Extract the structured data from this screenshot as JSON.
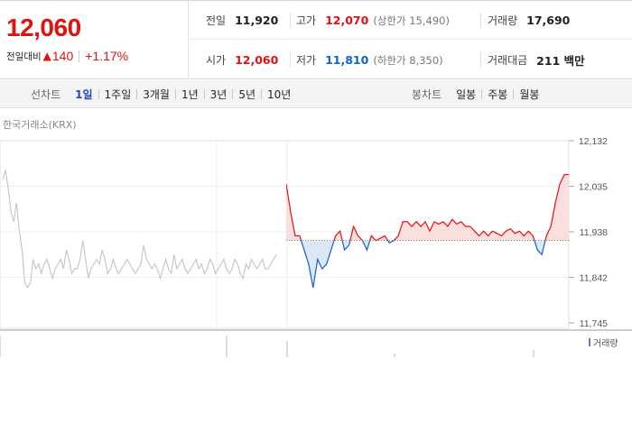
{
  "summary": {
    "price": "12,060",
    "change_label": "전일대비",
    "change_icon": "up-triangle-icon",
    "change_value": "140",
    "change_rate": "+1.17%",
    "prev_close_label": "전일",
    "prev_close": "11,920",
    "high_label": "고가",
    "high": "12,070",
    "upper_limit": "(상한가 15,490)",
    "volume_label": "거래량",
    "volume": "17,690",
    "open_label": "시가",
    "open": "12,060",
    "low_label": "저가",
    "low": "11,810",
    "lower_limit": "(하한가 8,350)",
    "amount_label": "거래대금",
    "amount": "211 백만"
  },
  "tabs": {
    "line_title": "선차트",
    "line": [
      "1일",
      "1주일",
      "3개월",
      "1년",
      "3년",
      "5년",
      "10년"
    ],
    "candle_title": "봉차트",
    "candle": [
      "일봉",
      "주봉",
      "월봉"
    ]
  },
  "exchange": "한국거래소(KRX)",
  "volume_legend": "거래량",
  "colors": {
    "up": "#e1120f",
    "down": "#1360c9",
    "up_fill": "#fbdede",
    "down_fill": "#dce8f6",
    "prev_line": "#c8c8c8"
  },
  "chart_data": {
    "type": "line",
    "ylim": [
      11745,
      12132
    ],
    "y_ticks": [
      "12,132",
      "12,035",
      "11,938",
      "11,842",
      "11,745"
    ],
    "base": 11920,
    "series": [
      {
        "values": [
          12050,
          12070,
          12030,
          11980,
          11960,
          12000,
          11940,
          11900,
          11830,
          11820,
          11830,
          11880,
          11860,
          11870,
          11850,
          11870,
          11880,
          11860,
          11840,
          11860,
          11870,
          11880,
          11860,
          11900,
          11880,
          11850,
          11860,
          11860,
          11880,
          11920,
          11880,
          11840,
          11860,
          11870,
          11880,
          11870,
          11900,
          11880,
          11850,
          11860,
          11880,
          11860,
          11850,
          11860,
          11870,
          11880,
          11870,
          11860,
          11850,
          11860,
          11870,
          11910,
          11880,
          11870,
          11860,
          11870,
          11860,
          11840,
          11860,
          11880,
          11860,
          11850,
          11890,
          11860,
          11870,
          11880,
          11860,
          11850,
          11860,
          11870,
          11880,
          11860,
          11870,
          11850,
          11860,
          11880,
          11870,
          11850,
          11860,
          11870,
          11880,
          11860,
          11850,
          11860,
          11880,
          11870,
          11850,
          11840,
          11870,
          11860,
          11880,
          11870,
          11860,
          11870,
          11880,
          11860,
          11860,
          11870,
          11880,
          11890
        ]
      },
      {
        "values": [
          12040,
          11980,
          11930,
          11930,
          11900,
          11870,
          11820,
          11880,
          11860,
          11870,
          11900,
          11930,
          11940,
          11900,
          11910,
          11950,
          11930,
          11920,
          11900,
          11930,
          11920,
          11925,
          11930,
          11915,
          11920,
          11930,
          11960,
          11960,
          11950,
          11960,
          11950,
          11960,
          11940,
          11960,
          11955,
          11960,
          11950,
          11965,
          11955,
          11960,
          11950,
          11950,
          11940,
          11930,
          11940,
          11930,
          11940,
          11935,
          11930,
          11940,
          11945,
          11935,
          11940,
          11930,
          11940,
          11930,
          11900,
          11890,
          11930,
          11950,
          12000,
          12040,
          12060,
          12060
        ]
      }
    ]
  }
}
